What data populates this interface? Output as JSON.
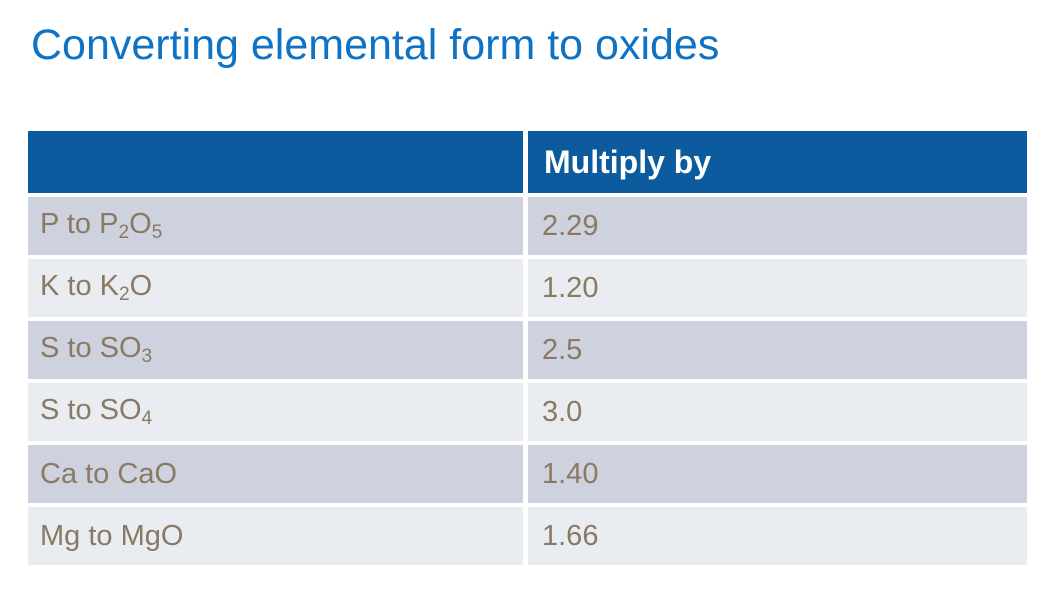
{
  "slide": {
    "title": "Converting elemental form to oxides"
  },
  "table": {
    "header": {
      "label_col": "",
      "value_col": "Multiply by"
    },
    "rows": [
      {
        "label_parts": [
          {
            "text": "P to P"
          },
          {
            "text": "2",
            "subscript": true
          },
          {
            "text": "O"
          },
          {
            "text": "5",
            "subscript": true
          }
        ],
        "value": "2.29"
      },
      {
        "label_parts": [
          {
            "text": "K to K"
          },
          {
            "text": "2",
            "subscript": true
          },
          {
            "text": "O"
          }
        ],
        "value": "1.20"
      },
      {
        "label_parts": [
          {
            "text": "S to SO"
          },
          {
            "text": "3",
            "subscript": true
          }
        ],
        "value": "2.5"
      },
      {
        "label_parts": [
          {
            "text": "S to SO"
          },
          {
            "text": "4",
            "subscript": true
          }
        ],
        "value": "3.0"
      },
      {
        "label_parts": [
          {
            "text": "Ca to CaO"
          }
        ],
        "value": "1.40"
      },
      {
        "label_parts": [
          {
            "text": "Mg to MgO"
          }
        ],
        "value": "1.66"
      }
    ]
  },
  "colors": {
    "title_text": "#0e73c5",
    "header_bg": "#0b5b9e",
    "header_text": "#ffffff",
    "row_dark_bg": "#cdd2de",
    "row_light_bg": "#e9ecf1",
    "row_text": "#8a7a63",
    "background": "#ffffff"
  }
}
